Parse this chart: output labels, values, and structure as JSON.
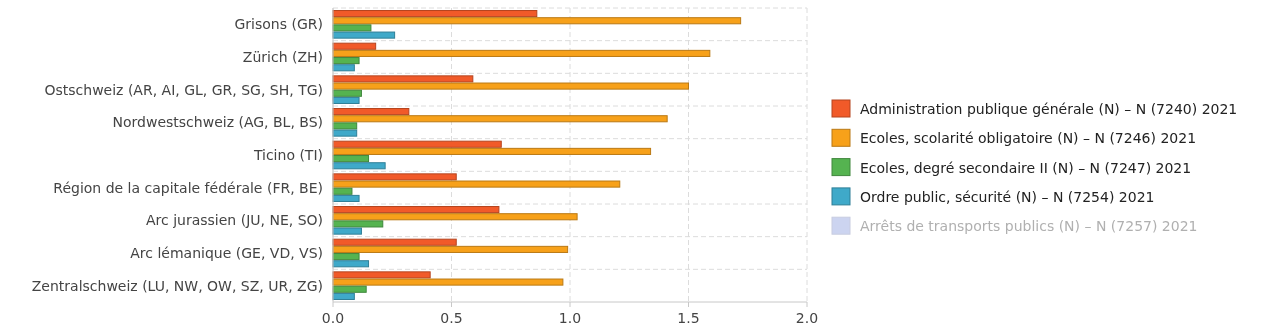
{
  "chart_data": {
    "type": "bar",
    "orientation": "horizontal",
    "categories": [
      "Grisons (GR)",
      "Zürich (ZH)",
      "Ostschweiz (AR, AI, GL, GR, SG, SH, TG)",
      "Nordwestschweiz (AG, BL, BS)",
      "Ticino (TI)",
      "Région de la capitale fédérale (FR, BE)",
      "Arc jurassien (JU, NE, SO)",
      "Arc lémanique (GE, VD, VS)",
      "Zentralschweiz (LU, NW, OW, SZ, UR, ZG)"
    ],
    "series": [
      {
        "name": "Administration publique générale (N) – N (7240)  2021",
        "color": "#f15a29",
        "values": [
          0.86,
          0.18,
          0.59,
          0.32,
          0.71,
          0.52,
          0.7,
          0.52,
          0.41
        ]
      },
      {
        "name": "Ecoles, scolarité obligatoire (N) – N (7246)  2021",
        "color": "#f7a11a",
        "values": [
          1.72,
          1.59,
          1.5,
          1.41,
          1.34,
          1.21,
          1.03,
          0.99,
          0.97
        ]
      },
      {
        "name": "Ecoles, degré secondaire II (N) – N (7247)  2021",
        "color": "#55b350",
        "values": [
          0.16,
          0.11,
          0.12,
          0.1,
          0.15,
          0.08,
          0.21,
          0.11,
          0.14
        ]
      },
      {
        "name": "Ordre public, sécurité (N) – N (7254)  2021",
        "color": "#3fa9c9",
        "values": [
          0.26,
          0.09,
          0.11,
          0.1,
          0.22,
          0.11,
          0.12,
          0.15,
          0.09
        ]
      },
      {
        "name": "Arrêts de transports publics (N) – N (7257)  2021",
        "color": "#ccd4f0",
        "values": [
          null,
          null,
          null,
          null,
          null,
          null,
          null,
          null,
          null
        ]
      }
    ],
    "xlim": [
      0,
      2
    ],
    "xticks": [
      {
        "value": 0,
        "label": "0.0"
      },
      0.5,
      {
        "value": 1,
        "label": "1.0"
      },
      1.5,
      {
        "value": 2,
        "label": "2.0"
      }
    ],
    "grid": true,
    "legend": "right"
  }
}
